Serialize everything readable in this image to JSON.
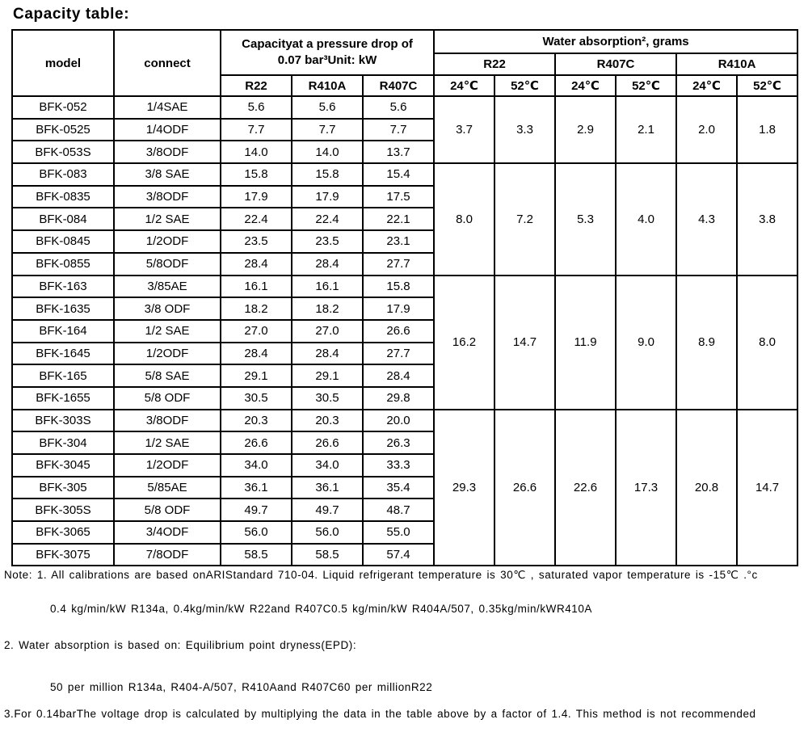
{
  "title": "Capacity table:",
  "table": {
    "header": {
      "model": "model",
      "connect": "connect",
      "capacity_line1": "Capacityat a pressure drop of",
      "capacity_line2": "0.07 bar³Unit: kW",
      "capacity_cols": [
        "R22",
        "R410A",
        "R407C"
      ],
      "water_title": "Water absorption², grams",
      "water_groups": [
        "R22",
        "R407C",
        "R410A"
      ],
      "temps": [
        "24℃",
        "52℃",
        "24℃",
        "52℃",
        "24℃",
        "52℃"
      ]
    },
    "groups": [
      {
        "rows": [
          [
            "BFK-052",
            "1/4SAE",
            "5.6",
            "5.6",
            "5.6"
          ],
          [
            "BFK-0525",
            "1/4ODF",
            "7.7",
            "7.7",
            "7.7"
          ],
          [
            "BFK-053S",
            "3/8ODF",
            "14.0",
            "14.0",
            "13.7"
          ]
        ],
        "water": [
          "3.7",
          "3.3",
          "2.9",
          "2.1",
          "2.0",
          "1.8"
        ]
      },
      {
        "rows": [
          [
            "BFK-083",
            "3/8 SAE",
            "15.8",
            "15.8",
            "15.4"
          ],
          [
            "BFK-0835",
            "3/8ODF",
            "17.9",
            "17.9",
            "17.5"
          ],
          [
            "BFK-084",
            "1/2 SAE",
            "22.4",
            "22.4",
            "22.1"
          ],
          [
            "BFK-0845",
            "1/2ODF",
            "23.5",
            "23.5",
            "23.1"
          ],
          [
            "BFK-0855",
            "5/8ODF",
            "28.4",
            "28.4",
            "27.7"
          ]
        ],
        "water": [
          "8.0",
          "7.2",
          "5.3",
          "4.0",
          "4.3",
          "3.8"
        ]
      },
      {
        "rows": [
          [
            "BFK-163",
            "3/85AE",
            "16.1",
            "16.1",
            "15.8"
          ],
          [
            "BFK-1635",
            "3/8 ODF",
            "18.2",
            "18.2",
            "17.9"
          ],
          [
            "BFK-164",
            "1/2 SAE",
            "27.0",
            "27.0",
            "26.6"
          ],
          [
            "BFK-1645",
            "1/2ODF",
            "28.4",
            "28.4",
            "27.7"
          ],
          [
            "BFK-165",
            "5/8 SAE",
            "29.1",
            "29.1",
            "28.4"
          ],
          [
            "BFK-1655",
            "5/8 ODF",
            "30.5",
            "30.5",
            "29.8"
          ]
        ],
        "water": [
          "16.2",
          "14.7",
          "11.9",
          "9.0",
          "8.9",
          "8.0"
        ]
      },
      {
        "rows": [
          [
            "BFK-303S",
            "3/8ODF",
            "20.3",
            "20.3",
            "20.0"
          ],
          [
            "BFK-304",
            "1/2 SAE",
            "26.6",
            "26.6",
            "26.3"
          ],
          [
            "BFK-3045",
            "1/2ODF",
            "34.0",
            "34.0",
            "33.3"
          ],
          [
            "BFK-305",
            "5/85AE",
            "36.1",
            "36.1",
            "35.4"
          ],
          [
            "BFK-305S",
            "5/8 ODF",
            "49.7",
            "49.7",
            "48.7"
          ],
          [
            "BFK-3065",
            "3/4ODF",
            "56.0",
            "56.0",
            "55.0"
          ],
          [
            "BFK-3075",
            "7/8ODF",
            "58.5",
            "58.5",
            "57.4"
          ]
        ],
        "water": [
          "29.3",
          "26.6",
          "22.6",
          "17.3",
          "20.8",
          "14.7"
        ]
      }
    ]
  },
  "notes": {
    "line1": "Note: 1. All calibrations are based onARIStandard 710-04. Liquid refrigerant temperature is 30℃ , saturated vapor temperature is -15℃ .°c",
    "line2": "0.4 kg/min/kW R134a, 0.4kg/min/kW R22and R407C0.5 kg/min/kW R404A/507, 0.35kg/min/kWR410A",
    "line3": "2. Water absorption is based on: Equilibrium point dryness(EPD):",
    "line4": "50 per million R134a, R404-A/507, R410Aand R407C60 per millionR22",
    "line5": "3.For 0.14barThe voltage drop is calculated by multiplying the data in the table above by a factor of 1.4. This method is not recommended"
  }
}
